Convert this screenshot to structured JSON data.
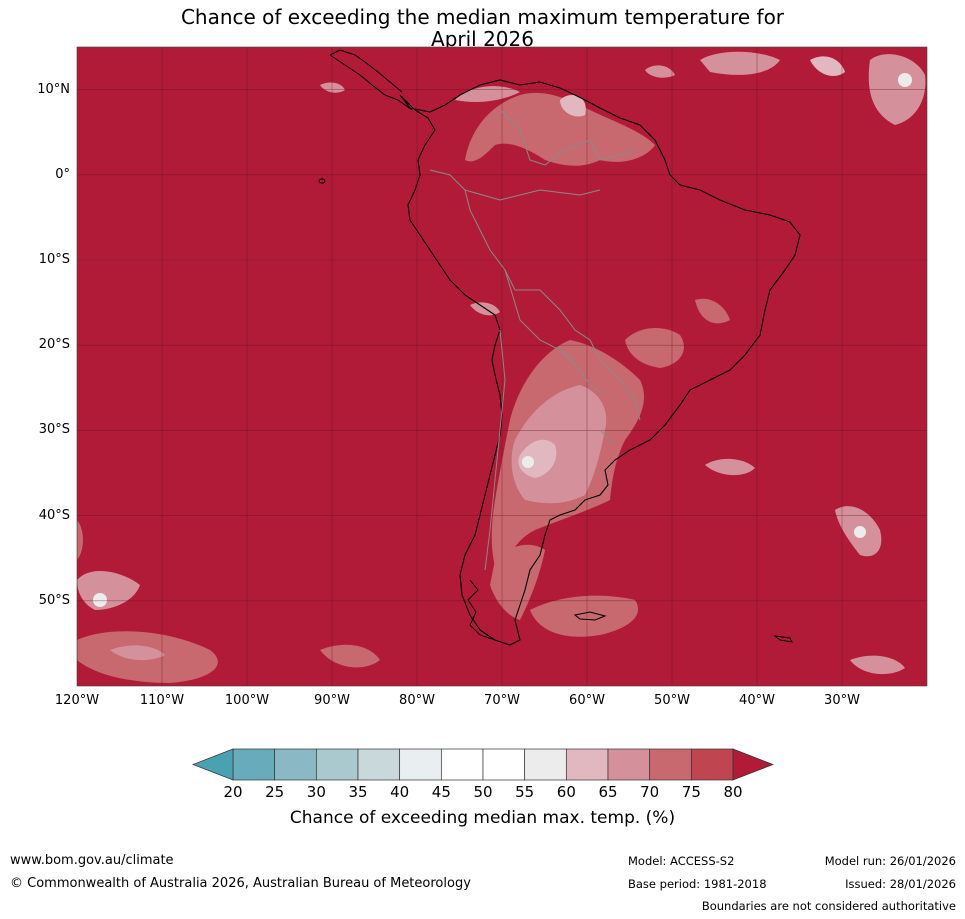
{
  "title": {
    "line1": "Chance of exceeding the median maximum temperature for",
    "line2": "April 2026"
  },
  "map": {
    "region": "South America",
    "background_color": "#b11b37",
    "latitude_labels": [
      "10°N",
      "0°",
      "10°S",
      "20°S",
      "30°S",
      "40°S",
      "50°S"
    ],
    "latitude_values": [
      10,
      0,
      -10,
      -20,
      -30,
      -40,
      -50
    ],
    "longitude_labels": [
      "120°W",
      "110°W",
      "100°W",
      "90°W",
      "80°W",
      "70°W",
      "60°W",
      "50°W",
      "40°W",
      "30°W"
    ],
    "longitude_values": [
      -120,
      -110,
      -100,
      -90,
      -80,
      -70,
      -60,
      -50,
      -40,
      -30
    ],
    "extent": {
      "lon_min": -120,
      "lon_max": -20,
      "lat_min": -60,
      "lat_max": 15
    }
  },
  "colorbar": {
    "ticks": [
      "20",
      "25",
      "30",
      "35",
      "40",
      "45",
      "50",
      "55",
      "60",
      "65",
      "70",
      "75",
      "80"
    ],
    "colors": [
      "#68acbc",
      "#8ab9c5",
      "#a9c9cf",
      "#c9d9db",
      "#e9eff1",
      "#ffffff",
      "#ffffff",
      "#ececed",
      "#e1b8bf",
      "#d5919b",
      "#c8686f",
      "#bf4650"
    ],
    "low_extension_color": "#4aa1b1",
    "high_extension_color": "#b11b37",
    "label": "Chance of exceeding median max. temp. (%)"
  },
  "footer": {
    "website": "www.bom.gov.au/climate",
    "copyright": "© Commonwealth of Australia 2026, Australian Bureau of Meteorology",
    "model": "Model: ACCESS-S2",
    "base_period": "Base period: 1981-2018",
    "model_run": "Model run: 26/01/2026",
    "issued": "Issued: 28/01/2026",
    "disclaimer": "Boundaries are not considered authoritative"
  }
}
